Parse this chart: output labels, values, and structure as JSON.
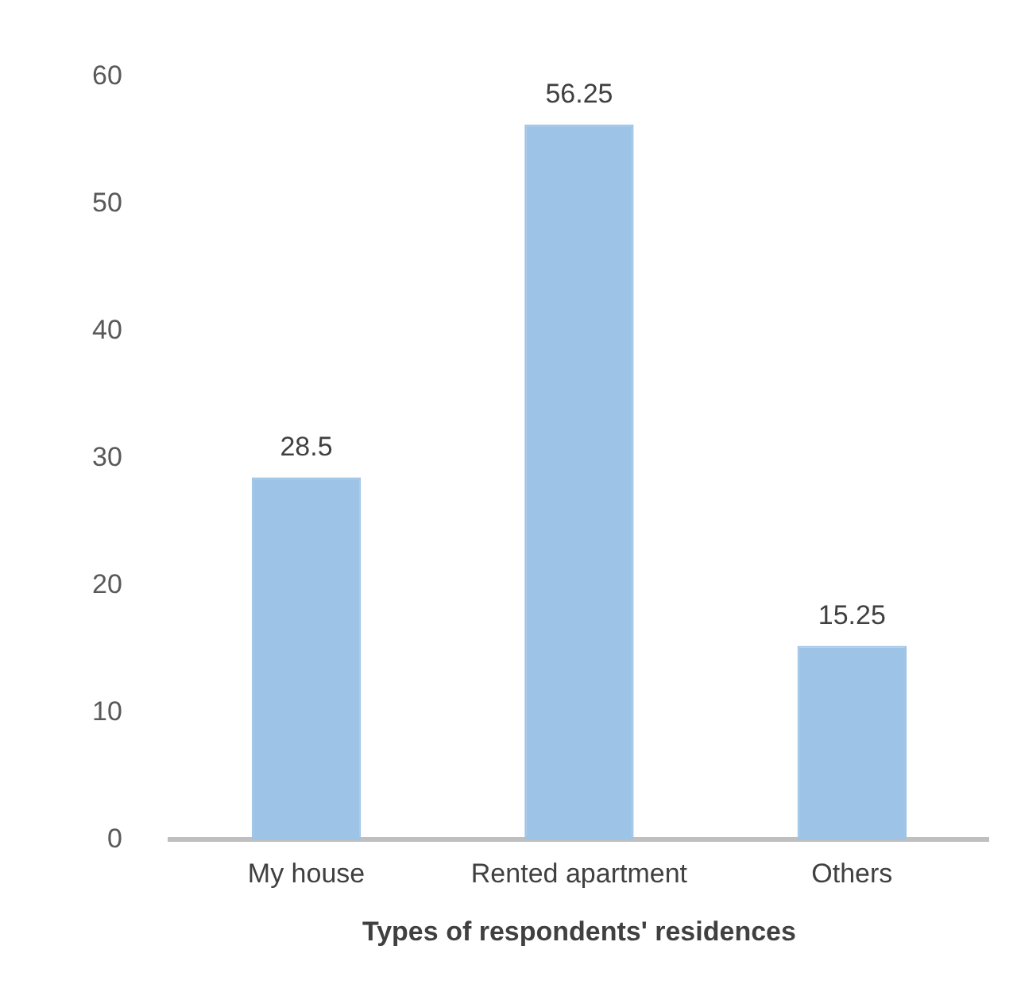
{
  "chart_data": {
    "type": "bar",
    "xlabel": "Types of respondents' residences",
    "categories": [
      "My house",
      "Rented apartment",
      "Others"
    ],
    "values": [
      28.5,
      56.25,
      15.25
    ],
    "color": "#9dc3e6",
    "ylim": [
      0,
      60
    ],
    "yticks": [
      0,
      10,
      20,
      30,
      40,
      50,
      60
    ],
    "grid": false,
    "legend": false,
    "data_labels": true
  }
}
